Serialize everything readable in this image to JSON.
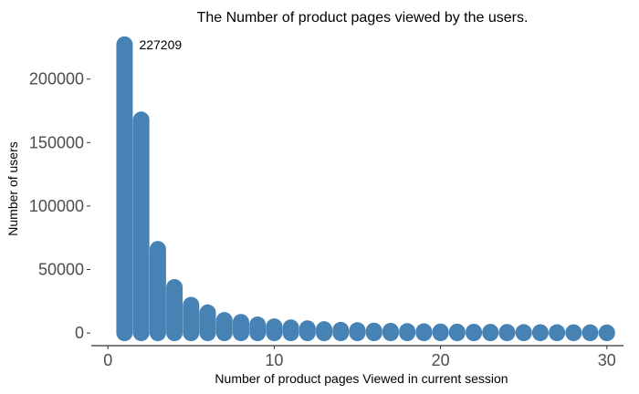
{
  "chart_data": {
    "type": "bar",
    "title": "The  Number of product pages viewed by the users.",
    "xlabel": "Number of product pages Viewed in current session",
    "ylabel": "Number of users",
    "x": [
      1,
      2,
      3,
      4,
      5,
      6,
      7,
      8,
      9,
      10,
      11,
      12,
      13,
      14,
      15,
      16,
      17,
      18,
      19,
      20,
      21,
      22,
      23,
      24,
      25,
      26,
      27,
      28,
      29,
      30
    ],
    "values": [
      227209,
      168000,
      66000,
      36000,
      22000,
      16000,
      10000,
      8500,
      6500,
      5000,
      4200,
      3500,
      2800,
      2300,
      2000,
      1700,
      1500,
      1300,
      1100,
      1000,
      900,
      800,
      700,
      600,
      500,
      450,
      400,
      350,
      300,
      250
    ],
    "xlim": [
      -1,
      31
    ],
    "ylim": [
      -10000,
      235000
    ],
    "xticks": [
      0,
      10,
      20,
      30
    ],
    "yticks": [
      0,
      50000,
      100000,
      150000,
      200000
    ],
    "annotation": {
      "x": 1,
      "y": 227209,
      "text": "227209"
    },
    "color": "#4682b4",
    "grid": false,
    "legend": "none"
  }
}
